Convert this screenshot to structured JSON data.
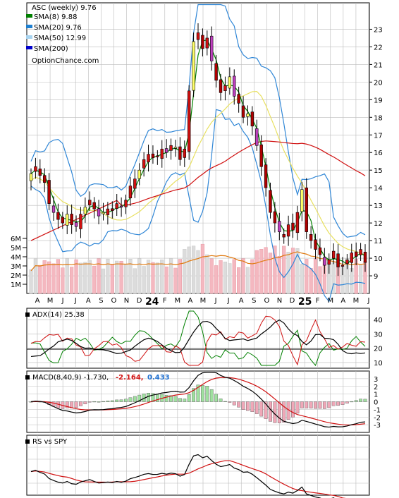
{
  "chart_data": [
    {
      "type": "candlestick",
      "panel": "price",
      "title": "ASC (weekly) 9.76",
      "watermark": "OptionChance.com",
      "legend": [
        {
          "label": "SMA(8) 9.88",
          "color": "#008000"
        },
        {
          "label": "SMA(20) 9.76",
          "color": "#1e7fd0"
        },
        {
          "label": "SMA(50) 12.99",
          "color": "#a8d4f0"
        },
        {
          "label": "SMA(200)",
          "color": "#0000cc"
        }
      ],
      "y_ticks": [
        "23",
        "22",
        "21",
        "20",
        "19",
        "18",
        "17",
        "16",
        "15",
        "14",
        "13",
        "12",
        "11",
        "10",
        "9"
      ],
      "ylim": [
        8,
        24.5
      ],
      "x_labels": [
        "A",
        "M",
        "J",
        "J",
        "A",
        "S",
        "O",
        "N",
        "D",
        "24",
        "F",
        "M",
        "A",
        "M",
        "J",
        "J",
        "A",
        "S",
        "O",
        "N",
        "D",
        "25",
        "F",
        "M",
        "A",
        "M",
        "J"
      ],
      "close": [
        14.8,
        15.2,
        14.7,
        14.3,
        13.1,
        12.6,
        12.2,
        12.0,
        12.5,
        11.9,
        11.8,
        12.5,
        12.9,
        13.3,
        12.8,
        12.4,
        12.6,
        12.8,
        12.7,
        13.1,
        12.9,
        13.3,
        14.1,
        14.5,
        15.0,
        15.6,
        15.9,
        15.7,
        15.8,
        16.2,
        16.0,
        16.4,
        16.3,
        15.6,
        16.2,
        19.5,
        22.3,
        22.8,
        21.9,
        22.5,
        21.2,
        20.1,
        19.4,
        19.8,
        20.3,
        19.2,
        18.8,
        18.0,
        18.2,
        17.5,
        16.4,
        15.2,
        14.0,
        12.6,
        12.0,
        11.5,
        11.2,
        11.9,
        11.6,
        12.6,
        13.9,
        11.5,
        11.0,
        10.5,
        10.2,
        9.6,
        9.9,
        10.4,
        9.5,
        9.6,
        9.9,
        10.3,
        10.1,
        10.5,
        9.76
      ],
      "volume_ylim": [
        0,
        7
      ],
      "volume_ticks": [
        "6M",
        "5M",
        "4M",
        "3M",
        "2M",
        "1M"
      ]
    },
    {
      "type": "line",
      "panel": "adx",
      "label": "ADX(14) 25.38",
      "y_ticks": [
        "40",
        "30",
        "20",
        "10"
      ],
      "ylim": [
        6,
        48
      ]
    },
    {
      "type": "bar+line",
      "panel": "macd",
      "label": "MACD(8,40,9) -1.730,",
      "signal_label": "-2.164,",
      "hist_label": "0.433",
      "y_ticks": [
        "3",
        "2",
        "1",
        "0",
        "-1",
        "-2",
        "-3"
      ],
      "ylim": [
        -4,
        4
      ]
    },
    {
      "type": "line",
      "panel": "rs",
      "label": "RS vs SPY"
    }
  ]
}
